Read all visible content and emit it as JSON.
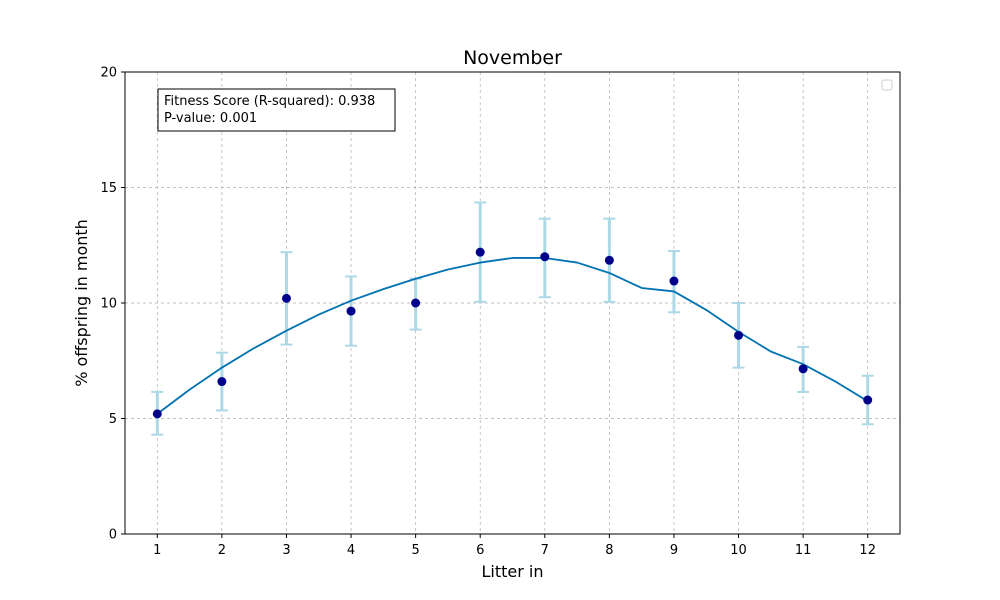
{
  "chart_data": {
    "type": "scatter",
    "title": "November",
    "xlabel": "Litter in",
    "ylabel": "% offspring in month",
    "xlim": [
      0.5,
      12.5
    ],
    "ylim": [
      0,
      20
    ],
    "x_ticks": [
      1,
      2,
      3,
      4,
      5,
      6,
      7,
      8,
      9,
      10,
      11,
      12
    ],
    "y_ticks": [
      0,
      5,
      10,
      15,
      20
    ],
    "grid": true,
    "legend": "top-right",
    "stats": {
      "line1": "Fitness Score (R-squared): 0.938",
      "line2": "P-value: 0.001"
    },
    "points": {
      "x": [
        1,
        2,
        3,
        4,
        5,
        6,
        7,
        8,
        9,
        10,
        11,
        12
      ],
      "y": [
        5.2,
        6.6,
        10.2,
        9.65,
        10.0,
        12.2,
        12.0,
        11.85,
        10.95,
        8.6,
        7.15,
        5.8
      ],
      "err_low": [
        4.3,
        5.35,
        8.2,
        8.15,
        8.85,
        10.05,
        10.25,
        10.05,
        9.6,
        7.2,
        6.15,
        4.75
      ],
      "err_high": [
        6.15,
        7.85,
        12.2,
        11.15,
        11.05,
        14.35,
        13.65,
        13.65,
        12.25,
        10.0,
        8.1,
        6.85
      ]
    },
    "fit": {
      "x": [
        1,
        1.5,
        2,
        2.5,
        3,
        3.5,
        4,
        4.5,
        5,
        5.5,
        6,
        6.5,
        7,
        7.5,
        8,
        8.5,
        9,
        9.5,
        10,
        10.5,
        11,
        11.5,
        12
      ],
      "y": [
        5.2,
        6.25,
        7.2,
        8.05,
        8.8,
        9.5,
        10.1,
        10.6,
        11.05,
        11.45,
        11.75,
        11.95,
        11.95,
        11.75,
        11.3,
        10.65,
        10.5,
        9.7,
        8.75,
        7.9,
        7.35,
        6.6,
        5.75
      ]
    },
    "colors": {
      "point": "#00008b",
      "errorbar": "#add8e6",
      "fit_line": "#0072b2",
      "grid": "#b0b0b0"
    }
  }
}
